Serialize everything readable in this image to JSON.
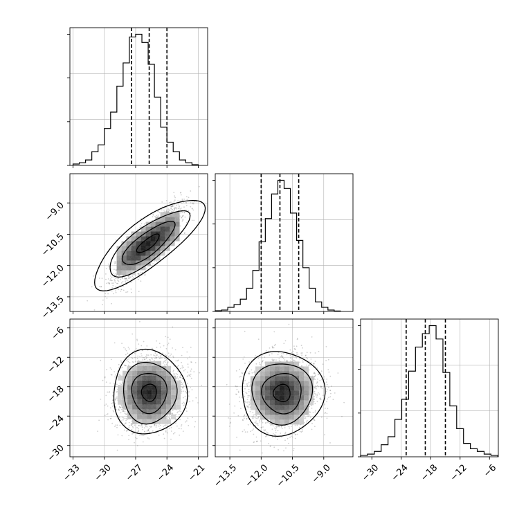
{
  "chart_data": {
    "type": "corner",
    "parameters": [
      {
        "index": 0,
        "range": [
          -33.3,
          -20.1
        ],
        "ticks": [
          -33,
          -30,
          -27,
          -24,
          -21
        ],
        "tick_labels": [
          "−33",
          "−30",
          "−27",
          "−24",
          "−21"
        ],
        "quantiles": [
          -27.4,
          -25.7,
          -24.0
        ]
      },
      {
        "index": 1,
        "range": [
          -14.2,
          -7.6
        ],
        "ticks": [
          -13.5,
          -12.0,
          -10.5,
          -9.0
        ],
        "tick_labels": [
          "−13.5",
          "−12.0",
          "−10.5",
          "−9.0"
        ],
        "quantiles": [
          -12.0,
          -11.1,
          -10.2
        ]
      },
      {
        "index": 2,
        "range": [
          -32.3,
          -4.2
        ],
        "ticks": [
          -30,
          -24,
          -18,
          -12,
          -6
        ],
        "tick_labels": [
          "−30",
          "−24",
          "−18",
          "−12",
          "−6"
        ],
        "quantiles": [
          -23.0,
          -19.1,
          -15.0
        ]
      }
    ],
    "histograms": [
      {
        "param": 0,
        "bin_start": -33.0,
        "bin_width": 0.6,
        "counts": [
          1,
          2,
          4,
          10,
          15,
          27,
          39,
          58,
          75,
          94,
          96,
          90,
          74,
          50,
          28,
          17,
          10,
          4,
          2,
          0.5
        ]
      },
      {
        "param": 1,
        "bin_start": -14.2,
        "bin_width": 0.3,
        "counts": [
          0.5,
          1,
          3,
          5,
          9,
          17,
          30,
          51,
          68,
          86,
          96,
          90,
          72,
          52,
          32,
          17,
          7,
          3,
          1,
          0.3
        ]
      },
      {
        "param": 2,
        "bin_start": -32.3,
        "bin_width": 1.4,
        "counts": [
          1,
          2,
          4,
          9,
          15,
          28,
          43,
          64,
          82,
          92,
          98,
          88,
          63,
          38,
          21,
          10,
          6,
          4,
          2,
          1
        ]
      }
    ],
    "pairs": [
      {
        "x_param": 0,
        "y_param": 1,
        "center": [
          -25.8,
          -10.95
        ],
        "spread": [
          1.55,
          0.88
        ],
        "correlation": 0.85
      },
      {
        "x_param": 0,
        "y_param": 2,
        "center": [
          -25.7,
          -19.2
        ],
        "spread": [
          1.6,
          3.9
        ],
        "correlation": 0.1
      },
      {
        "x_param": 1,
        "y_param": 2,
        "center": [
          -11.0,
          -19.3
        ],
        "spread": [
          0.9,
          3.9
        ],
        "correlation": 0.15
      }
    ],
    "grid": true,
    "colors": {
      "line": "#000000",
      "scatter": "#777777",
      "grid": "#b0b0b0"
    }
  }
}
